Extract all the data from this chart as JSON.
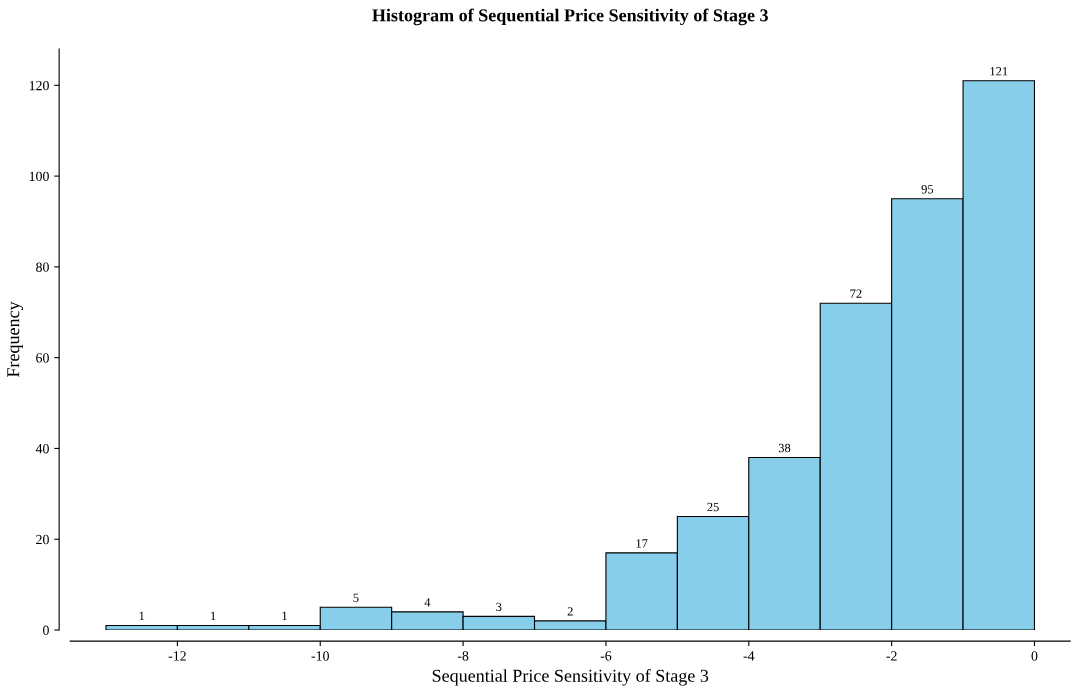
{
  "chart_data": {
    "type": "histogram",
    "title": "Histogram of Sequential Price Sensitivity of Stage 3",
    "xlabel": "Sequential Price Sensitivity of Stage 3",
    "ylabel": "Frequency",
    "bins": [
      -13,
      -12,
      -11,
      -10,
      -9,
      -8,
      -7,
      -6,
      -5,
      -4,
      -3,
      -2,
      -1,
      0
    ],
    "values": [
      1,
      1,
      1,
      5,
      4,
      3,
      2,
      17,
      25,
      38,
      72,
      95,
      121
    ],
    "color": "#87ceeb",
    "data_labels": true,
    "grid": false,
    "legend": false,
    "xlim": [
      -13.5,
      0.5
    ],
    "xticks": [
      -12,
      -10,
      -8,
      -6,
      -4,
      -2,
      0
    ],
    "ylim": [
      0,
      128
    ],
    "yticks": [
      0,
      20,
      40,
      60,
      80,
      100,
      120
    ]
  }
}
